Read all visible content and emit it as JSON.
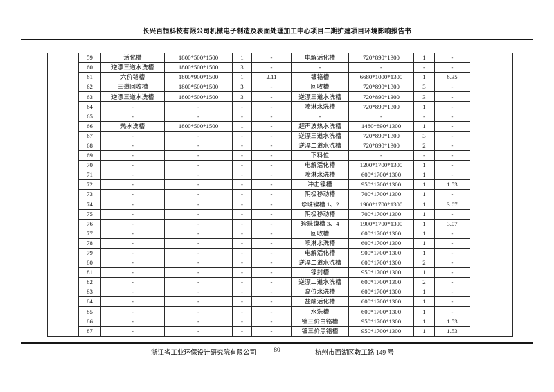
{
  "header": {
    "title": "长兴百恒科技有限公司机械电子制造及表面处理加工中心项目二期扩建项目环境影响报告书"
  },
  "footer": {
    "company": "浙江省工业环保设计研究院有限公司",
    "page_number": "80",
    "address": "杭州市西湖区教工路 149 号"
  },
  "table": {
    "rows": [
      {
        "no": "59",
        "name1": "活化槽",
        "dims1": "1800*500*1500",
        "qty1": "1",
        "val1": "-",
        "name2": "电解活化槽",
        "dims2": "720*890*1300",
        "qty2": "1",
        "val2": "-"
      },
      {
        "no": "60",
        "name1": "逆漂三道水洗槽",
        "dims1": "1800*500*1500",
        "qty1": "3",
        "val1": "-",
        "name2": "-",
        "dims2": "-",
        "qty2": "-",
        "val2": "-"
      },
      {
        "no": "61",
        "name1": "六价铬槽",
        "dims1": "1800*900*1500",
        "qty1": "1",
        "val1": "2.11",
        "name2": "镀铬槽",
        "dims2": "6680*1000*1300",
        "qty2": "1",
        "val2": "6.35"
      },
      {
        "no": "62",
        "name1": "三道回收槽",
        "dims1": "1800*500*1500",
        "qty1": "3",
        "val1": "-",
        "name2": "回收槽",
        "dims2": "720*890*1300",
        "qty2": "3",
        "val2": "-"
      },
      {
        "no": "63",
        "name1": "逆漂三道水洗槽",
        "dims1": "1800*500*1500",
        "qty1": "3",
        "val1": "-",
        "name2": "逆漂三道水洗槽",
        "dims2": "720*890*1300",
        "qty2": "3",
        "val2": "-"
      },
      {
        "no": "64",
        "name1": "-",
        "dims1": "-",
        "qty1": "-",
        "val1": "-",
        "name2": "喷淋水洗槽",
        "dims2": "720*890*1300",
        "qty2": "1",
        "val2": "-"
      },
      {
        "no": "65",
        "name1": "-",
        "dims1": "-",
        "qty1": "-",
        "val1": "-",
        "name2": "-",
        "dims2": "-",
        "qty2": "-",
        "val2": "-"
      },
      {
        "no": "66",
        "name1": "热水洗槽",
        "dims1": "1800*500*1500",
        "qty1": "1",
        "val1": "-",
        "name2": "超声波热水洗槽",
        "dims2": "1480*890*1300",
        "qty2": "1",
        "val2": "-"
      },
      {
        "no": "67",
        "name1": "-",
        "dims1": "-",
        "qty1": "-",
        "val1": "-",
        "name2": "逆漂三道水洗槽",
        "dims2": "720*890*1300",
        "qty2": "3",
        "val2": "-"
      },
      {
        "no": "68",
        "name1": "-",
        "dims1": "-",
        "qty1": "-",
        "val1": "-",
        "name2": "逆漂二道水洗槽",
        "dims2": "720*890*1300",
        "qty2": "2",
        "val2": "-"
      },
      {
        "no": "69",
        "name1": "-",
        "dims1": "-",
        "qty1": "-",
        "val1": "-",
        "name2": "下料位",
        "dims2": "-",
        "qty2": "-",
        "val2": "-"
      },
      {
        "no": "70",
        "name1": "-",
        "dims1": "-",
        "qty1": "-",
        "val1": "-",
        "name2": "电解活化槽",
        "dims2": "1200*1700*1300",
        "qty2": "1",
        "val2": "-"
      },
      {
        "no": "71",
        "name1": "-",
        "dims1": "-",
        "qty1": "-",
        "val1": "-",
        "name2": "喷淋水洗槽",
        "dims2": "600*1700*1300",
        "qty2": "1",
        "val2": "-"
      },
      {
        "no": "72",
        "name1": "-",
        "dims1": "-",
        "qty1": "-",
        "val1": "-",
        "name2": "冲击镍槽",
        "dims2": "950*1700*1300",
        "qty2": "1",
        "val2": "1.53"
      },
      {
        "no": "73",
        "name1": "-",
        "dims1": "-",
        "qty1": "-",
        "val1": "-",
        "name2": "阴极移动槽",
        "dims2": "700*1700*1300",
        "qty2": "1",
        "val2": "-"
      },
      {
        "no": "74",
        "name1": "-",
        "dims1": "-",
        "qty1": "-",
        "val1": "-",
        "name2": "珍珠镍槽 1、2",
        "dims2": "1900*1700*1300",
        "qty2": "1",
        "val2": "3.07"
      },
      {
        "no": "75",
        "name1": "-",
        "dims1": "-",
        "qty1": "-",
        "val1": "-",
        "name2": "阴极移动槽",
        "dims2": "700*1700*1300",
        "qty2": "1",
        "val2": "-"
      },
      {
        "no": "76",
        "name1": "-",
        "dims1": "-",
        "qty1": "-",
        "val1": "-",
        "name2": "珍珠镍槽 3、4",
        "dims2": "1900*1700*1300",
        "qty2": "1",
        "val2": "3.07"
      },
      {
        "no": "77",
        "name1": "-",
        "dims1": "-",
        "qty1": "-",
        "val1": "-",
        "name2": "回收槽",
        "dims2": "600*1700*1300",
        "qty2": "1",
        "val2": "-"
      },
      {
        "no": "78",
        "name1": "-",
        "dims1": "-",
        "qty1": "-",
        "val1": "-",
        "name2": "喷淋水洗槽",
        "dims2": "600*1700*1300",
        "qty2": "1",
        "val2": "-"
      },
      {
        "no": "79",
        "name1": "-",
        "dims1": "-",
        "qty1": "-",
        "val1": "-",
        "name2": "电解活化槽",
        "dims2": "900*1700*1300",
        "qty2": "1",
        "val2": "-"
      },
      {
        "no": "80",
        "name1": "-",
        "dims1": "-",
        "qty1": "-",
        "val1": "-",
        "name2": "逆漂二道水洗槽",
        "dims2": "600*1700*1300",
        "qty2": "2",
        "val2": "-"
      },
      {
        "no": "81",
        "name1": "-",
        "dims1": "-",
        "qty1": "-",
        "val1": "-",
        "name2": "镍封槽",
        "dims2": "950*1700*1300",
        "qty2": "1",
        "val2": "-"
      },
      {
        "no": "82",
        "name1": "-",
        "dims1": "-",
        "qty1": "-",
        "val1": "-",
        "name2": "逆漂二道水洗槽",
        "dims2": "600*1700*1300",
        "qty2": "2",
        "val2": "-"
      },
      {
        "no": "83",
        "name1": "-",
        "dims1": "-",
        "qty1": "-",
        "val1": "-",
        "name2": "高位水洗槽",
        "dims2": "600*1700*1300",
        "qty2": "1",
        "val2": "-"
      },
      {
        "no": "84",
        "name1": "-",
        "dims1": "-",
        "qty1": "-",
        "val1": "-",
        "name2": "盐酸活化槽",
        "dims2": "600*1700*1300",
        "qty2": "1",
        "val2": "-"
      },
      {
        "no": "85",
        "name1": "-",
        "dims1": "-",
        "qty1": "-",
        "val1": "-",
        "name2": "水洗槽",
        "dims2": "600*1700*1300",
        "qty2": "1",
        "val2": "-"
      },
      {
        "no": "86",
        "name1": "-",
        "dims1": "-",
        "qty1": "-",
        "val1": "-",
        "name2": "镀三价白铬槽",
        "dims2": "950*1700*1300",
        "qty2": "1",
        "val2": "1.53"
      },
      {
        "no": "87",
        "name1": "-",
        "dims1": "-",
        "qty1": "-",
        "val1": "-",
        "name2": "镀三价黑铬槽",
        "dims2": "950*1700*1300",
        "qty2": "1",
        "val2": "1.53"
      }
    ]
  }
}
